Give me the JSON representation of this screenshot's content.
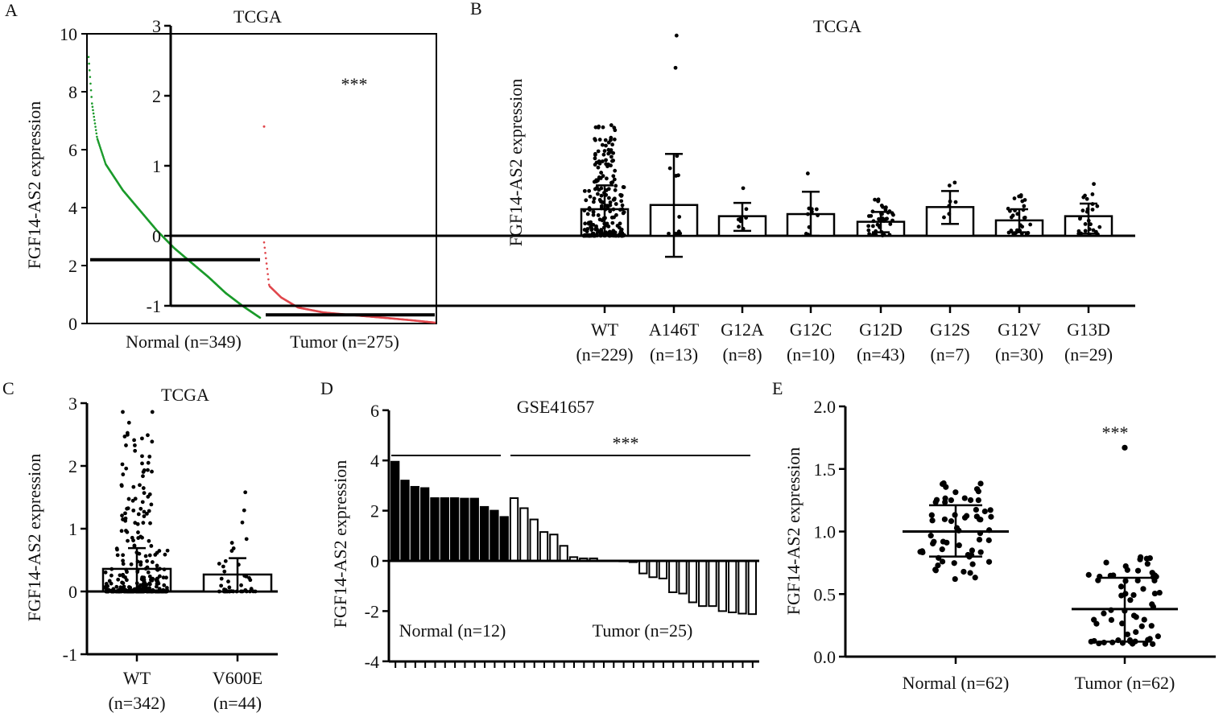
{
  "panel_labels": [
    "A",
    "B",
    "C",
    "D",
    "E"
  ],
  "chart_data": [
    {
      "panel": "A",
      "type": "scatter",
      "title": "TCGA",
      "ylabel": "FGF14-AS2 expression",
      "ylim": [
        0,
        10
      ],
      "yticks": [
        0,
        2,
        4,
        6,
        8,
        10
      ],
      "annotation": "***",
      "groups": [
        {
          "label": "Normal (n=349)",
          "n": 349,
          "color": "#1a9a2a",
          "mean": 2.2,
          "sorted_profile": [
            [
              0,
              9.2
            ],
            [
              0.02,
              7.6
            ],
            [
              0.05,
              6.4
            ],
            [
              0.1,
              5.5
            ],
            [
              0.2,
              4.6
            ],
            [
              0.3,
              3.9
            ],
            [
              0.4,
              3.2
            ],
            [
              0.5,
              2.6
            ],
            [
              0.6,
              2.1
            ],
            [
              0.7,
              1.6
            ],
            [
              0.8,
              1.05
            ],
            [
              0.9,
              0.6
            ],
            [
              1,
              0.2
            ]
          ]
        },
        {
          "label": "Tumor (n=275)",
          "n": 275,
          "color": "#e0474c",
          "mean": 0.3,
          "sorted_profile": [
            [
              0,
              2.8
            ],
            [
              0.03,
              1.3
            ],
            [
              0.1,
              0.9
            ],
            [
              0.2,
              0.55
            ],
            [
              0.35,
              0.38
            ],
            [
              0.5,
              0.3
            ],
            [
              0.7,
              0.2
            ],
            [
              0.85,
              0.12
            ],
            [
              1,
              0.03
            ]
          ],
          "outliers": [
            6.8
          ]
        }
      ]
    },
    {
      "panel": "B",
      "type": "bar",
      "title": "TCGA",
      "ylabel": "FGF14-AS2 expression",
      "ylim": [
        -1,
        3
      ],
      "yticks": [
        -1,
        0,
        1,
        2,
        3
      ],
      "categories": [
        "WT",
        "A146T",
        "G12A",
        "G12C",
        "G12D",
        "G12S",
        "G12V",
        "G13D"
      ],
      "n_labels": [
        "(n=229)",
        "(n=13)",
        "(n=8)",
        "(n=10)",
        "(n=43)",
        "(n=7)",
        "(n=30)",
        "(n=29)"
      ],
      "n": [
        229,
        13,
        8,
        10,
        43,
        7,
        30,
        29
      ],
      "values": [
        0.38,
        0.44,
        0.28,
        0.31,
        0.2,
        0.41,
        0.22,
        0.28
      ],
      "error_low": [
        0.04,
        -0.3,
        0.07,
        0.0,
        0.05,
        0.17,
        0.05,
        0.03
      ],
      "error_high": [
        0.72,
        1.17,
        0.47,
        0.63,
        0.34,
        0.64,
        0.38,
        0.46
      ],
      "point_min": [
        0.0,
        0.03,
        0.07,
        0.0,
        0.0,
        0.12,
        0.02,
        0.02
      ],
      "point_max": [
        1.58,
        2.86,
        0.68,
        0.89,
        0.52,
        0.76,
        0.58,
        0.74
      ]
    },
    {
      "panel": "C",
      "type": "bar",
      "title": "TCGA",
      "ylabel": "FGF14-AS2 expression",
      "ylim": [
        -1,
        3
      ],
      "yticks": [
        -1,
        0,
        1,
        2,
        3
      ],
      "categories": [
        "WT",
        "V600E"
      ],
      "n_labels": [
        "(n=342)",
        "(n=44)"
      ],
      "n": [
        342,
        44
      ],
      "values": [
        0.36,
        0.27
      ],
      "error_low": [
        0.03,
        0.0
      ],
      "error_high": [
        0.69,
        0.53
      ],
      "point_min": [
        0.0,
        0.0
      ],
      "point_max": [
        2.86,
        1.58
      ]
    },
    {
      "panel": "D",
      "type": "bar",
      "title": "GSE41657",
      "ylabel": "FGF14-AS2 expression",
      "ylim": [
        -4,
        6
      ],
      "yticks": [
        -4,
        -2,
        0,
        2,
        4,
        6
      ],
      "annotation": "***",
      "groups": [
        {
          "label": "Normal (n=12)",
          "fill": "#000000",
          "values": [
            3.95,
            3.2,
            2.95,
            2.9,
            2.5,
            2.5,
            2.5,
            2.48,
            2.48,
            2.15,
            2.0,
            1.75
          ]
        },
        {
          "label": "Tumor (n=25)",
          "fill": "#ffffff",
          "values": [
            2.5,
            2.1,
            1.65,
            1.15,
            1.05,
            0.6,
            0.15,
            0.1,
            0.1,
            0.0,
            0.0,
            -0.02,
            -0.05,
            -0.5,
            -0.65,
            -0.7,
            -1.25,
            -1.3,
            -1.65,
            -1.8,
            -1.8,
            -2.0,
            -2.05,
            -2.1,
            -2.12
          ]
        }
      ]
    },
    {
      "panel": "E",
      "type": "scatter",
      "ylabel": "FGF14-AS2 expression",
      "ylim": [
        0,
        2.0
      ],
      "yticks": [
        "0.0",
        "0.5",
        "1.0",
        "1.5",
        "2.0"
      ],
      "annotation": "***",
      "categories": [
        "Normal (n=62)",
        "Tumor (n=62)"
      ],
      "n": [
        62,
        62
      ],
      "mean": [
        1.0,
        0.38
      ],
      "sd_low": [
        0.8,
        0.12
      ],
      "sd_high": [
        1.21,
        0.63
      ],
      "point_min": [
        0.62,
        0.1
      ],
      "point_max": [
        1.4,
        1.67
      ]
    }
  ]
}
